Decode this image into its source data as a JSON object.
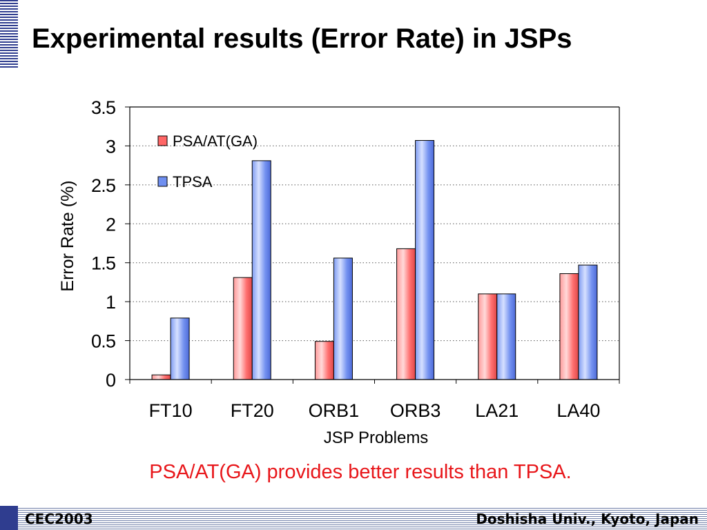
{
  "slide": {
    "title": "Experimental results (Error Rate) in JSPs",
    "conclusion": "PSA/AT(GA) provides better results than TPSA.",
    "footer_left": "CEC2003",
    "footer_right": "Doshisha Univ., Kyoto, Japan"
  },
  "colors": {
    "accent": "#2f3d8f",
    "series_1": "#ff6666",
    "series_2": "#6f8ff0",
    "conclusion_text": "#e8161a"
  },
  "chart_data": {
    "type": "bar",
    "title": "",
    "xlabel": "JSP Problems",
    "ylabel": "Error Rate (%)",
    "categories": [
      "FT10",
      "FT20",
      "ORB1",
      "ORB3",
      "LA21",
      "LA40"
    ],
    "series": [
      {
        "name": "PSA/AT(GA)",
        "values": [
          0.06,
          1.31,
          0.49,
          1.68,
          1.1,
          1.36
        ]
      },
      {
        "name": "TPSA",
        "values": [
          0.79,
          2.81,
          1.56,
          3.07,
          1.1,
          1.47
        ]
      }
    ],
    "ylim": [
      0,
      3.5
    ],
    "yticks": [
      "0",
      "0.5",
      "1",
      "1.5",
      "2",
      "2.5",
      "3",
      "3.5"
    ],
    "grid": true,
    "legend_position": "top-left inside"
  }
}
